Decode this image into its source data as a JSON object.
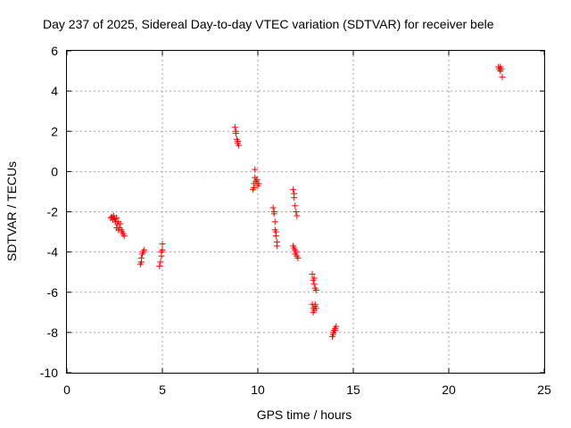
{
  "chart_data": {
    "type": "scatter",
    "title": "Day 237 of 2025, Sidereal Day-to-day VTEC variation (SDTVAR) for receiver bele",
    "xlabel": "GPS time / hours",
    "ylabel": "SDTVAR / TECUs",
    "xlim": [
      0,
      25
    ],
    "ylim": [
      -10,
      6
    ],
    "xticks": [
      0,
      5,
      10,
      15,
      20,
      25
    ],
    "xtick_labels": [
      "0",
      "5",
      "10",
      "15",
      "20",
      "25"
    ],
    "yticks": [
      -10,
      -8,
      -6,
      -4,
      -2,
      0,
      2,
      4,
      6
    ],
    "ytick_labels": [
      "-10",
      "-8",
      "-6",
      "-4",
      "-2",
      "0",
      "2",
      "4",
      "6"
    ],
    "grid": true,
    "marker": "+",
    "color": "#ff0000",
    "series": [
      {
        "name": "SDTVAR",
        "points": [
          [
            2.3,
            -2.3
          ],
          [
            2.35,
            -2.25
          ],
          [
            2.4,
            -2.4
          ],
          [
            2.45,
            -2.2
          ],
          [
            2.5,
            -2.35
          ],
          [
            2.55,
            -2.5
          ],
          [
            2.6,
            -2.3
          ],
          [
            2.65,
            -2.6
          ],
          [
            2.7,
            -2.5
          ],
          [
            2.75,
            -2.8
          ],
          [
            2.8,
            -2.6
          ],
          [
            2.85,
            -2.9
          ],
          [
            2.9,
            -3.0
          ],
          [
            2.95,
            -3.1
          ],
          [
            3.0,
            -3.2
          ],
          [
            2.6,
            -2.8
          ],
          [
            2.7,
            -2.9
          ],
          [
            3.85,
            -4.6
          ],
          [
            3.9,
            -4.3
          ],
          [
            3.95,
            -4.1
          ],
          [
            4.0,
            -4.0
          ],
          [
            4.05,
            -3.9
          ],
          [
            3.9,
            -4.5
          ],
          [
            4.85,
            -4.7
          ],
          [
            4.9,
            -4.5
          ],
          [
            4.95,
            -4.2
          ],
          [
            5.0,
            -3.9
          ],
          [
            5.0,
            -3.6
          ],
          [
            4.95,
            -4.0
          ],
          [
            8.8,
            2.2
          ],
          [
            8.85,
            1.9
          ],
          [
            8.9,
            1.6
          ],
          [
            8.95,
            1.4
          ],
          [
            9.0,
            1.3
          ],
          [
            8.85,
            2.0
          ],
          [
            8.95,
            1.5
          ],
          [
            9.75,
            -0.9
          ],
          [
            9.8,
            -0.6
          ],
          [
            9.85,
            -0.3
          ],
          [
            9.85,
            0.1
          ],
          [
            9.9,
            -0.5
          ],
          [
            9.95,
            -0.4
          ],
          [
            10.0,
            -0.7
          ],
          [
            10.05,
            -0.6
          ],
          [
            9.8,
            -0.8
          ],
          [
            10.8,
            -1.8
          ],
          [
            10.85,
            -2.1
          ],
          [
            10.9,
            -2.5
          ],
          [
            10.9,
            -2.9
          ],
          [
            10.95,
            -3.2
          ],
          [
            11.0,
            -3.5
          ],
          [
            11.0,
            -3.7
          ],
          [
            10.85,
            -2.0
          ],
          [
            10.95,
            -3.0
          ],
          [
            11.85,
            -0.9
          ],
          [
            11.9,
            -1.3
          ],
          [
            11.95,
            -1.7
          ],
          [
            12.0,
            -2.0
          ],
          [
            12.05,
            -2.2
          ],
          [
            11.9,
            -1.1
          ],
          [
            11.85,
            -3.7
          ],
          [
            11.9,
            -3.8
          ],
          [
            11.95,
            -3.9
          ],
          [
            12.0,
            -4.0
          ],
          [
            12.05,
            -4.2
          ],
          [
            12.1,
            -4.3
          ],
          [
            11.95,
            -4.1
          ],
          [
            12.85,
            -5.1
          ],
          [
            12.9,
            -5.4
          ],
          [
            12.95,
            -5.6
          ],
          [
            13.0,
            -5.8
          ],
          [
            13.05,
            -5.9
          ],
          [
            12.95,
            -5.3
          ],
          [
            12.85,
            -6.6
          ],
          [
            12.9,
            -6.8
          ],
          [
            12.95,
            -6.9
          ],
          [
            13.0,
            -6.7
          ],
          [
            13.05,
            -6.8
          ],
          [
            12.9,
            -7.0
          ],
          [
            13.0,
            -6.6
          ],
          [
            13.9,
            -8.2
          ],
          [
            13.95,
            -8.0
          ],
          [
            14.0,
            -7.9
          ],
          [
            14.05,
            -7.8
          ],
          [
            14.1,
            -7.7
          ],
          [
            13.95,
            -8.1
          ],
          [
            14.05,
            -7.9
          ],
          [
            22.6,
            5.2
          ],
          [
            22.65,
            5.1
          ],
          [
            22.7,
            5.0
          ],
          [
            22.75,
            5.1
          ],
          [
            22.8,
            4.7
          ],
          [
            22.7,
            5.2
          ]
        ]
      }
    ]
  }
}
